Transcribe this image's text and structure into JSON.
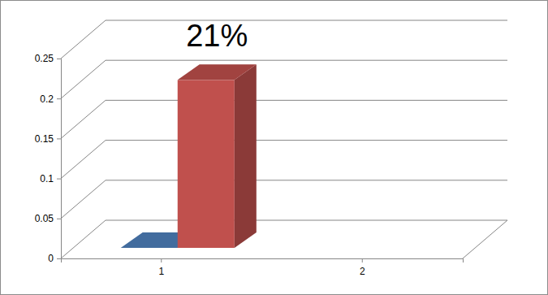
{
  "chart_data": {
    "type": "bar",
    "categories": [
      "1",
      "2"
    ],
    "series": [
      {
        "color": "#4f81bd",
        "values": [
          0,
          null
        ]
      },
      {
        "color": "#c0504d",
        "values": [
          0.21,
          null
        ],
        "value_labels": [
          "21%",
          null
        ]
      }
    ],
    "ylim": [
      0,
      0.25
    ],
    "yticks": [
      0,
      0.05,
      0.1,
      0.15,
      0.2,
      0.25
    ],
    "grid": true,
    "data_labels": true
  }
}
